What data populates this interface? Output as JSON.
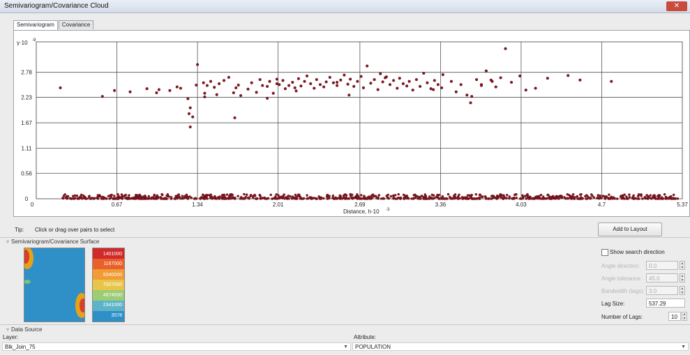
{
  "window": {
    "title": "Semivariogram/Covariance Cloud"
  },
  "tabs": [
    {
      "label": "Semivariogram"
    },
    {
      "label": "Covariance"
    }
  ],
  "chart_data": {
    "type": "scatter",
    "ylabel": "γ·10",
    "ylabel_exp": "-9",
    "xlabel": "Distance, h·10",
    "xlabel_exp": "-3",
    "x_ticks": [
      "0",
      "0.67",
      "1.34",
      "2.01",
      "2.69",
      "3.36",
      "4.03",
      "4.7",
      "5.37"
    ],
    "y_ticks": [
      "0",
      "0.56",
      "1.11",
      "1.67",
      "2.23",
      "2.78"
    ],
    "xlim": [
      0,
      5.37
    ],
    "ylim": [
      0,
      3.45
    ],
    "grid": true,
    "point_color": "#8b1520",
    "series": [
      {
        "x": [
          0.2,
          0.55,
          0.65,
          0.78,
          0.92,
          1.0,
          1.02,
          1.11,
          1.17,
          1.2,
          1.26,
          1.28,
          1.3,
          1.33,
          1.39,
          1.4,
          1.42,
          1.45,
          1.48,
          1.5,
          1.52,
          1.56,
          1.6,
          1.64,
          1.66,
          1.68,
          1.7,
          1.76,
          1.79,
          1.83,
          1.86,
          1.88,
          1.92,
          1.94,
          1.97,
          2.0,
          2.02,
          2.05,
          2.07,
          2.1,
          2.13,
          2.15,
          2.18,
          2.2,
          2.23,
          2.25,
          2.28,
          2.31,
          2.33,
          2.36,
          2.39,
          2.41,
          2.44,
          2.47,
          2.5,
          2.53,
          2.56,
          2.59,
          2.61,
          2.64,
          2.67,
          2.7,
          2.72,
          2.75,
          2.78,
          2.81,
          2.84,
          2.86,
          2.88,
          2.91,
          2.94,
          2.97,
          3.0,
          3.02,
          3.05,
          3.08,
          3.1,
          3.13,
          3.16,
          3.19,
          3.22,
          3.25,
          3.28,
          3.31,
          3.34,
          3.37,
          3.38,
          3.45,
          3.49,
          3.53,
          3.58,
          3.61,
          3.66,
          3.7,
          3.74,
          3.79,
          3.82,
          3.86,
          3.9,
          3.95,
          4.02,
          4.07,
          4.15,
          4.25,
          4.42,
          4.52,
          4.78,
          1.28,
          1.27,
          1.4,
          1.34,
          1.65,
          1.92,
          2.16,
          2.6,
          3.62,
          3.3,
          3.78,
          2.0,
          2.5,
          2.9,
          3.7
        ],
        "y": [
          2.44,
          2.25,
          2.38,
          2.35,
          2.42,
          2.33,
          2.4,
          2.38,
          2.46,
          2.43,
          2.2,
          2.0,
          1.8,
          2.5,
          2.55,
          2.32,
          2.49,
          2.58,
          2.45,
          2.29,
          2.53,
          2.6,
          2.67,
          2.33,
          2.44,
          2.5,
          2.27,
          2.41,
          2.55,
          2.34,
          2.62,
          2.49,
          2.47,
          2.58,
          2.32,
          2.53,
          2.51,
          2.6,
          2.42,
          2.49,
          2.56,
          2.44,
          2.64,
          2.48,
          2.58,
          2.7,
          2.53,
          2.43,
          2.62,
          2.51,
          2.46,
          2.57,
          2.67,
          2.55,
          2.49,
          2.61,
          2.72,
          2.52,
          2.63,
          2.47,
          2.58,
          2.69,
          2.44,
          2.92,
          2.54,
          2.62,
          2.4,
          2.75,
          2.57,
          2.68,
          2.51,
          2.6,
          2.43,
          2.65,
          2.53,
          2.48,
          2.58,
          2.39,
          2.62,
          2.47,
          2.76,
          2.55,
          2.42,
          2.6,
          2.51,
          2.44,
          2.73,
          2.58,
          2.35,
          2.51,
          2.28,
          2.11,
          2.62,
          2.51,
          2.81,
          2.58,
          2.46,
          2.66,
          3.3,
          2.56,
          2.7,
          2.39,
          2.43,
          2.65,
          2.71,
          2.61,
          2.58,
          1.58,
          1.87,
          2.24,
          2.95,
          1.78,
          2.21,
          2.37,
          2.28,
          2.25,
          2.4,
          2.61,
          2.63,
          2.56,
          2.66,
          2.49
        ]
      }
    ]
  },
  "tip": {
    "label": "Tip:",
    "text": "Click or drag over pairs to select"
  },
  "buttons": {
    "add_to_layout": "Add to Layout"
  },
  "surface": {
    "header": "Semivariogram/Covariance Surface",
    "legend": [
      "1401000",
      "1167000",
      "9340000",
      "7007000",
      "4674000",
      "2341000",
      "3578"
    ]
  },
  "options": {
    "show_search_direction": "Show search direction",
    "angle_direction_label": "Angle direction:",
    "angle_direction_value": "0.0",
    "angle_tolerance_label": "Angle tolerance:",
    "angle_tolerance_value": "45.0",
    "bandwidth_label": "Bandwidth (lags):",
    "bandwidth_value": "3.0",
    "lag_size_label": "Lag Size:",
    "lag_size_value": "537.29",
    "num_lags_label": "Number of Lags:",
    "num_lags_value": "10"
  },
  "data_source": {
    "header": "Data Source",
    "layer_label": "Layer:",
    "layer_value": "Blk_Join_75",
    "attribute_label": "Attribute:",
    "attribute_value": "POPULATION"
  }
}
